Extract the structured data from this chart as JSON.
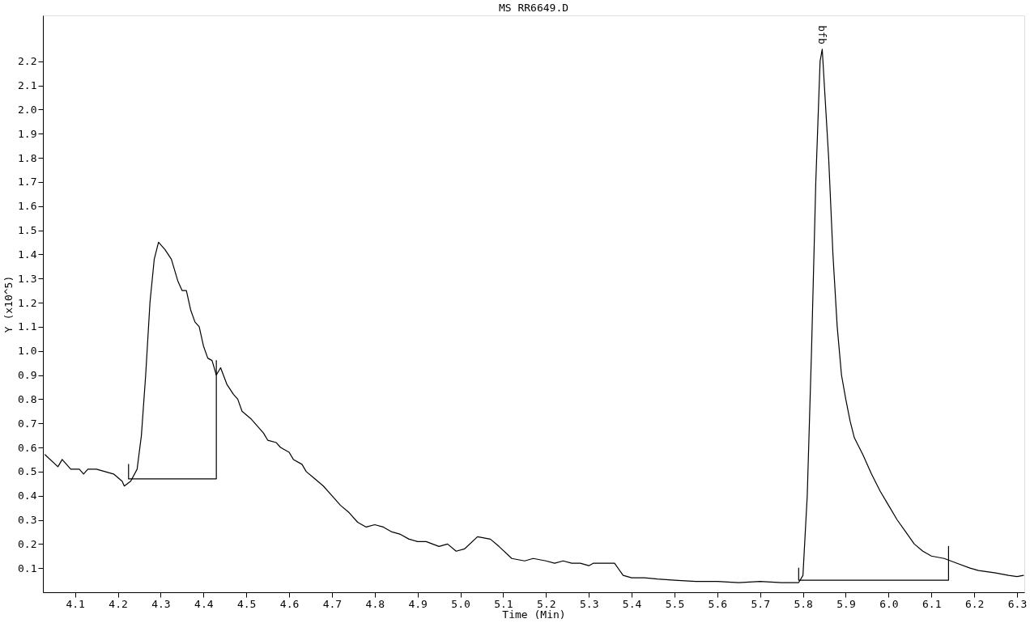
{
  "chart_data": {
    "type": "line",
    "title": "MS RR6649.D",
    "xlabel": "Time (Min)",
    "ylabel": "Y (x10^5)",
    "xlim": [
      4.025,
      6.317
    ],
    "ylim": [
      0,
      2.39
    ],
    "xticks": [
      4.1,
      4.2,
      4.3,
      4.4,
      4.5,
      4.6,
      4.7,
      4.8,
      4.9,
      {
        "value": 5.0,
        "label": "5.0"
      },
      5.1,
      5.2,
      5.3,
      5.4,
      5.5,
      5.6,
      5.7,
      5.8,
      5.9,
      {
        "value": 6.0,
        "label": "6.0"
      },
      6.1,
      6.2,
      6.3
    ],
    "yticks": [
      0.1,
      0.2,
      0.3,
      0.4,
      0.5,
      0.6,
      0.7,
      0.8,
      0.9,
      {
        "value": 1.0,
        "label": "1.0"
      },
      1.1,
      1.2,
      1.3,
      1.4,
      1.5,
      1.6,
      1.7,
      1.8,
      1.9,
      {
        "value": 2.0,
        "label": "2.0"
      },
      2.1,
      2.2
    ],
    "grid": false,
    "marker": "none",
    "line_style": "solid",
    "annotations": [
      {
        "text": "bfb",
        "x": 5.845,
        "y": 2.25
      }
    ],
    "series": [
      {
        "color": "#000000",
        "x": [
          4.03,
          4.06,
          4.07,
          4.09,
          4.11,
          4.12,
          4.13,
          4.15,
          4.17,
          4.19,
          4.21,
          4.215,
          4.23,
          4.245,
          4.255,
          4.265,
          4.275,
          4.285,
          4.295,
          4.31,
          4.325,
          4.34,
          4.35,
          4.36,
          4.37,
          4.38,
          4.39,
          4.4,
          4.41,
          4.42,
          4.43,
          4.44,
          4.455,
          4.47,
          4.48,
          4.49,
          4.51,
          4.525,
          4.54,
          4.55,
          4.57,
          4.58,
          4.6,
          4.61,
          4.63,
          4.64,
          4.66,
          4.68,
          4.7,
          4.72,
          4.74,
          4.76,
          4.78,
          4.8,
          4.82,
          4.84,
          4.86,
          4.88,
          4.9,
          4.92,
          4.95,
          4.97,
          4.99,
          5.01,
          5.04,
          5.07,
          5.09,
          5.12,
          5.15,
          5.17,
          5.2,
          5.22,
          5.24,
          5.26,
          5.28,
          5.3,
          5.31,
          5.34,
          5.36,
          5.38,
          5.4,
          5.43,
          5.46,
          5.5,
          5.55,
          5.6,
          5.65,
          5.7,
          5.75,
          5.79,
          5.8,
          5.81,
          5.82,
          5.83,
          5.84,
          5.845,
          5.85,
          5.86,
          5.87,
          5.88,
          5.89,
          5.9,
          5.91,
          5.92,
          5.94,
          5.96,
          5.98,
          6.0,
          6.02,
          6.04,
          6.06,
          6.08,
          6.1,
          6.13,
          6.16,
          6.19,
          6.21,
          6.23,
          6.25,
          6.28,
          6.3,
          6.315
        ],
        "values": [
          0.57,
          0.52,
          0.55,
          0.51,
          0.51,
          0.49,
          0.51,
          0.51,
          0.5,
          0.49,
          0.46,
          0.44,
          0.46,
          0.51,
          0.65,
          0.9,
          1.2,
          1.38,
          1.45,
          1.42,
          1.38,
          1.29,
          1.25,
          1.25,
          1.17,
          1.12,
          1.1,
          1.02,
          0.97,
          0.96,
          0.9,
          0.93,
          0.86,
          0.82,
          0.8,
          0.75,
          0.72,
          0.69,
          0.66,
          0.63,
          0.62,
          0.6,
          0.58,
          0.55,
          0.53,
          0.5,
          0.47,
          0.44,
          0.4,
          0.36,
          0.33,
          0.29,
          0.27,
          0.28,
          0.27,
          0.25,
          0.24,
          0.22,
          0.21,
          0.21,
          0.19,
          0.2,
          0.17,
          0.18,
          0.23,
          0.22,
          0.19,
          0.14,
          0.13,
          0.14,
          0.13,
          0.12,
          0.13,
          0.12,
          0.12,
          0.11,
          0.12,
          0.12,
          0.12,
          0.07,
          0.06,
          0.06,
          0.055,
          0.05,
          0.045,
          0.045,
          0.04,
          0.045,
          0.04,
          0.04,
          0.07,
          0.4,
          1.0,
          1.7,
          2.2,
          2.25,
          2.1,
          1.8,
          1.4,
          1.1,
          0.9,
          0.8,
          0.71,
          0.64,
          0.57,
          0.49,
          0.42,
          0.36,
          0.3,
          0.25,
          0.2,
          0.17,
          0.15,
          0.14,
          0.12,
          0.1,
          0.09,
          0.085,
          0.08,
          0.07,
          0.065,
          0.07
        ]
      },
      {
        "color": "#000000",
        "type": "line",
        "x": [
          4.225,
          4.225,
          4.43,
          4.43
        ],
        "values": [
          0.53,
          0.47,
          0.47,
          0.96
        ]
      },
      {
        "color": "#000000",
        "type": "line",
        "x": [
          5.79,
          5.79,
          6.14,
          6.14
        ],
        "values": [
          0.1,
          0.05,
          0.05,
          0.19
        ]
      }
    ]
  }
}
